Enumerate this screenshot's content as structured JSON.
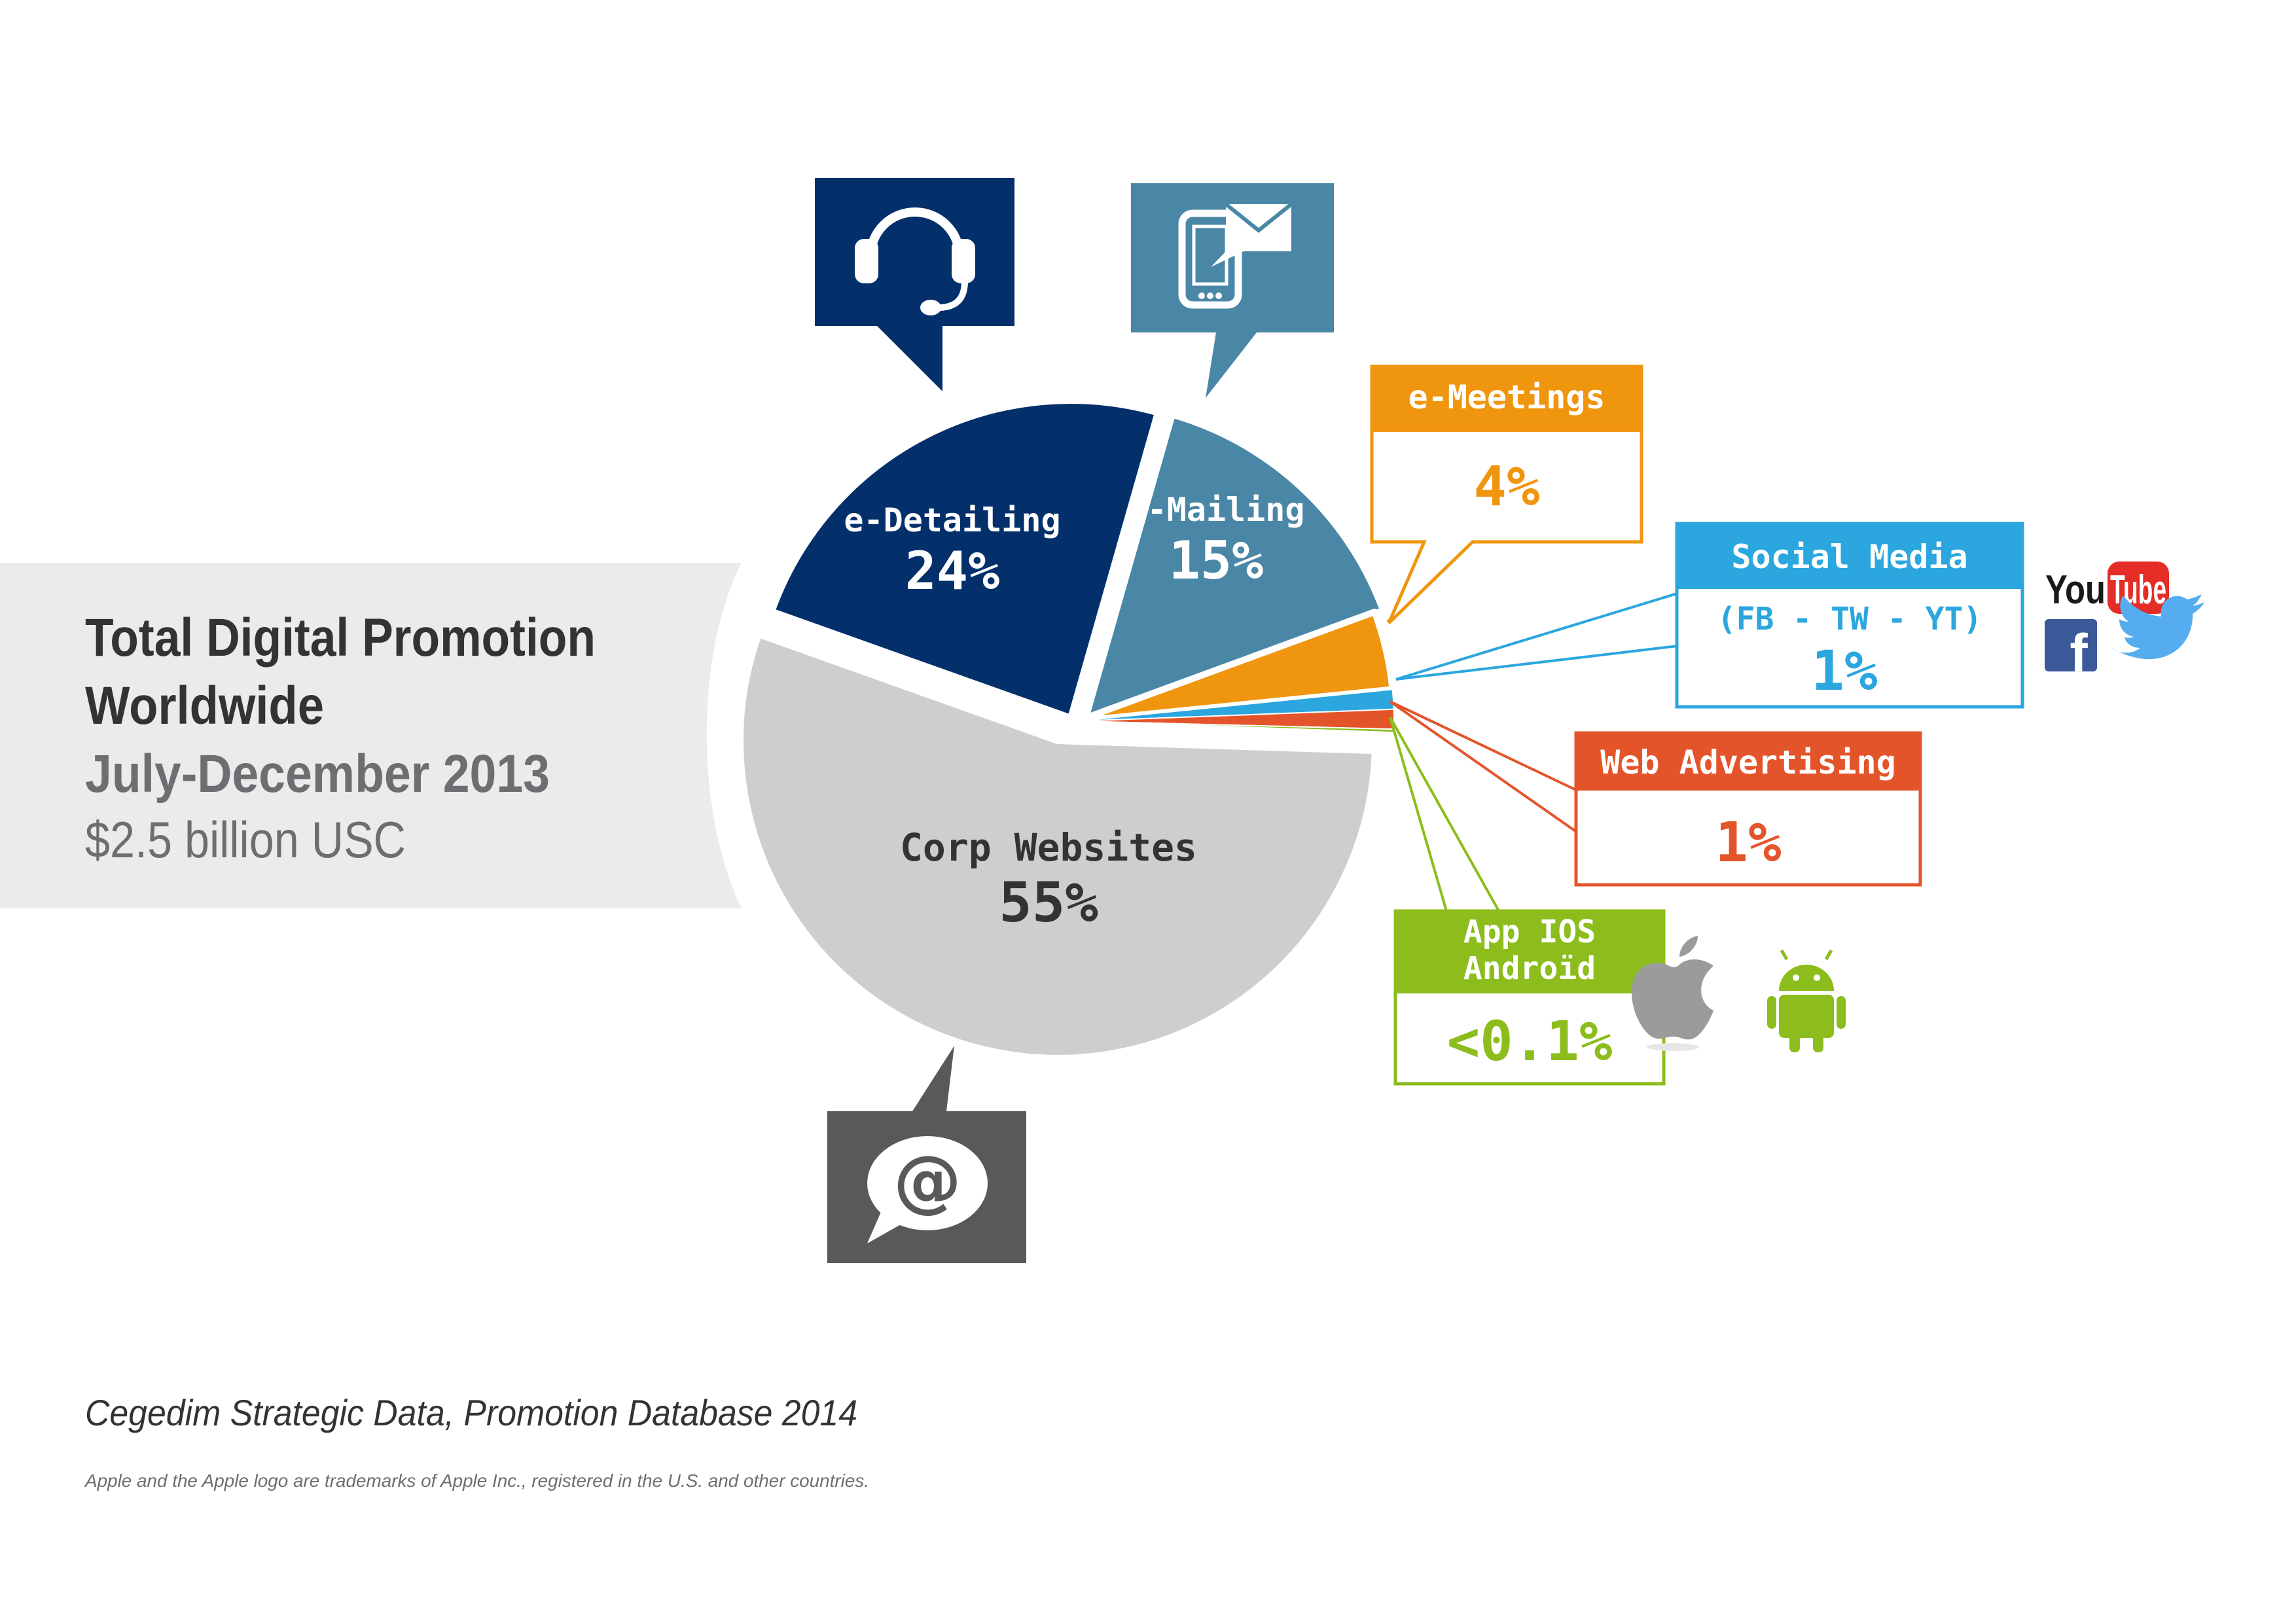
{
  "panel": {
    "title_line1": "Total Digital Promotion",
    "title_line2": "Worldwide",
    "period": "July-December 2013",
    "total": "$2.5 billion USC"
  },
  "chart_data": {
    "type": "pie",
    "slices": [
      {
        "key": "corp",
        "label": "Corp Websites",
        "value_label": "55%",
        "value": 55,
        "color": "#cdced0",
        "text_color": "#333333"
      },
      {
        "key": "detailing",
        "label": "e-Detailing",
        "value_label": "24%",
        "value": 24,
        "color": "#03306b",
        "text_color": "#ffffff"
      },
      {
        "key": "mailing",
        "label": "e-Mailing",
        "value_label": "15%",
        "value": 15,
        "color": "#4a87a6",
        "text_color": "#ffffff"
      },
      {
        "key": "meetings",
        "label": "e-Meetings",
        "value_label": "4%",
        "value": 4,
        "color": "#f0960e"
      },
      {
        "key": "social",
        "label": "Social Media",
        "sublabel": "(FB - TW - YT)",
        "value_label": "1%",
        "value": 1,
        "color": "#2ba6de"
      },
      {
        "key": "web",
        "label": "Web Advertising",
        "value_label": "1%",
        "value": 1,
        "color": "#e4542a"
      },
      {
        "key": "app",
        "label_line1": "App IOS",
        "label_line2": "Androïd",
        "value_label": "<0.1%",
        "value": 0.1,
        "color": "#8cbd1c"
      }
    ]
  },
  "icons": {
    "detailing": "headset-icon",
    "mailing": "phone-mail-icon",
    "corp": "at-sign-icon",
    "social_logo_text_1": "You",
    "social_logo_text_2": "Tube",
    "app_icons": [
      "apple-logo-icon",
      "android-robot-icon"
    ],
    "social_icons": [
      "youtube-logo",
      "facebook-icon",
      "twitter-bird-icon"
    ]
  },
  "source": "Cegedim Strategic Data, Promotion Database 2014",
  "trademark": "Apple and the Apple logo are trademarks of Apple Inc., registered in the U.S. and other countries."
}
